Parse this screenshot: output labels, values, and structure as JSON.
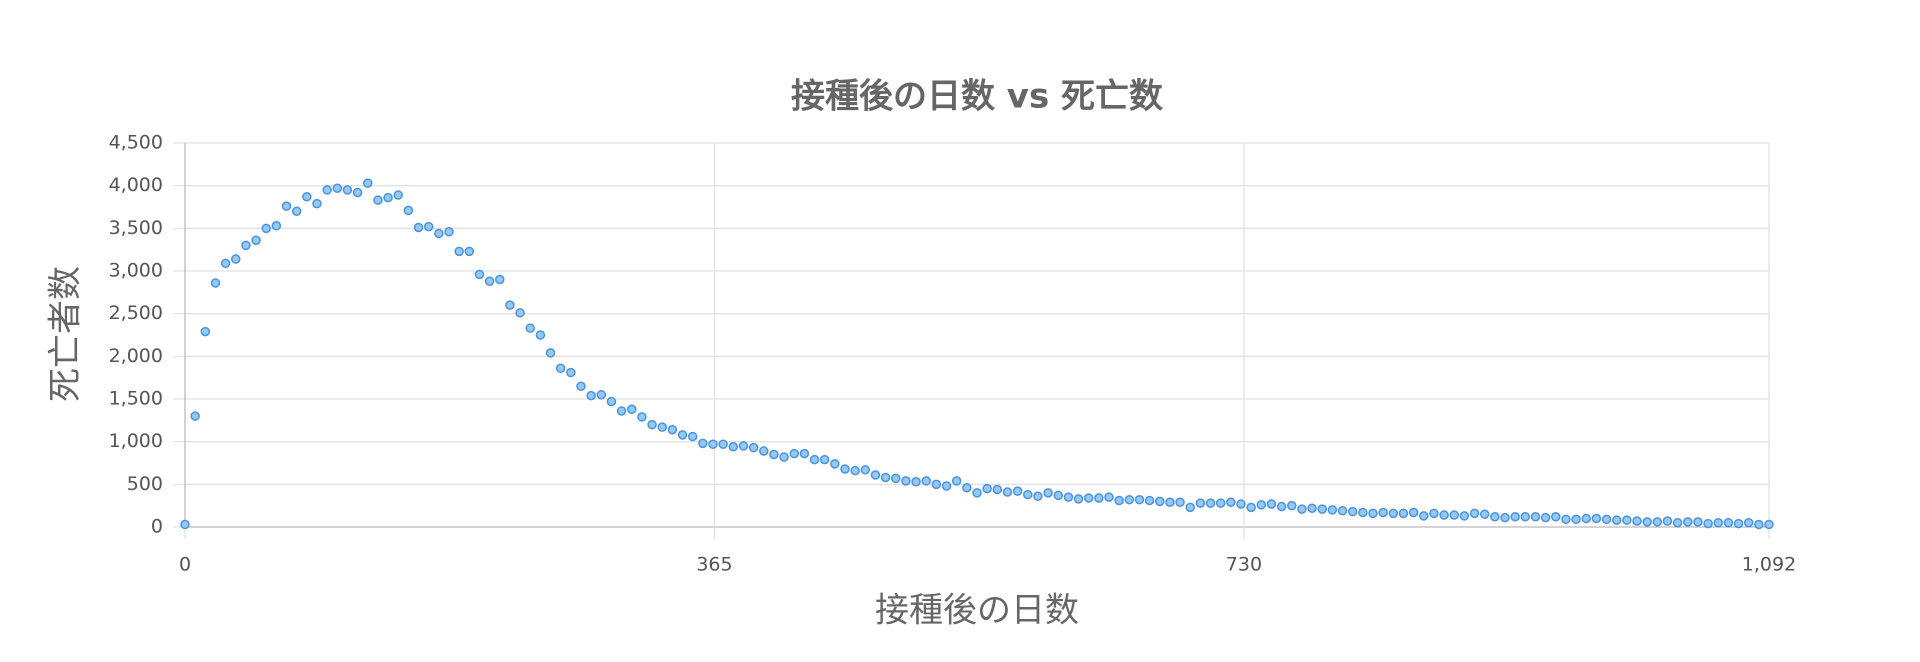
{
  "chart_data": {
    "type": "scatter",
    "title": "接種後の日数 vs 死亡数",
    "x_label": "接種後の日数",
    "y_label": "死亡者数",
    "xlim": [
      0,
      1092
    ],
    "ylim": [
      0,
      4500
    ],
    "xticks": [
      0,
      365,
      730,
      {
        "value": 1092,
        "label": "1,092"
      }
    ],
    "yticks": [
      0,
      500,
      {
        "value": 1000,
        "label": "1,000"
      },
      {
        "value": 1500,
        "label": "1,500"
      },
      {
        "value": 2000,
        "label": "2,000"
      },
      {
        "value": 2500,
        "label": "2,500"
      },
      {
        "value": 3000,
        "label": "3,000"
      },
      {
        "value": 3500,
        "label": "3,500"
      },
      {
        "value": 4000,
        "label": "4,000"
      },
      {
        "value": 4500,
        "label": "4,500"
      }
    ],
    "grid": true,
    "color": "#95c8f2",
    "edge_color": "#4a94dc",
    "x": [
      0,
      7,
      14,
      21,
      28,
      35,
      42,
      49,
      56,
      63,
      70,
      77,
      84,
      91,
      98,
      105,
      112,
      119,
      126,
      133,
      140,
      147,
      154,
      161,
      168,
      175,
      182,
      189,
      196,
      203,
      210,
      217,
      224,
      231,
      238,
      245,
      252,
      259,
      266,
      273,
      280,
      287,
      294,
      301,
      308,
      315,
      322,
      329,
      336,
      343,
      350,
      357,
      364,
      371,
      378,
      385,
      392,
      399,
      406,
      413,
      420,
      427,
      434,
      441,
      448,
      455,
      462,
      469,
      476,
      483,
      490,
      497,
      504,
      511,
      518,
      525,
      532,
      539,
      546,
      553,
      560,
      567,
      574,
      581,
      588,
      595,
      602,
      609,
      616,
      623,
      630,
      637,
      644,
      651,
      658,
      665,
      672,
      679,
      686,
      693,
      700,
      707,
      714,
      721,
      728,
      735,
      742,
      749,
      756,
      763,
      770,
      777,
      784,
      791,
      798,
      805,
      812,
      819,
      826,
      833,
      840,
      847,
      854,
      861,
      868,
      875,
      882,
      889,
      896,
      903,
      910,
      917,
      924,
      931,
      938,
      945,
      952,
      959,
      966,
      973,
      980,
      987,
      994,
      1001,
      1008,
      1015,
      1022,
      1029,
      1036,
      1043,
      1050,
      1057,
      1064,
      1071,
      1078,
      1085,
      1092
    ],
    "values": [
      30,
      1300,
      2290,
      2860,
      3090,
      3140,
      3300,
      3360,
      3500,
      3530,
      3760,
      3700,
      3870,
      3790,
      3950,
      3970,
      3950,
      3920,
      4030,
      3830,
      3860,
      3890,
      3710,
      3510,
      3520,
      3440,
      3460,
      3230,
      3230,
      2960,
      2880,
      2900,
      2600,
      2510,
      2330,
      2250,
      2040,
      1860,
      1810,
      1650,
      1540,
      1550,
      1470,
      1360,
      1380,
      1290,
      1200,
      1170,
      1140,
      1080,
      1060,
      980,
      970,
      970,
      940,
      950,
      930,
      890,
      850,
      820,
      860,
      860,
      790,
      790,
      740,
      680,
      660,
      670,
      610,
      580,
      570,
      540,
      530,
      540,
      500,
      480,
      540,
      460,
      400,
      450,
      440,
      410,
      420,
      380,
      360,
      400,
      370,
      350,
      330,
      340,
      340,
      350,
      310,
      320,
      320,
      310,
      300,
      290,
      290,
      230,
      280,
      280,
      280,
      290,
      270,
      230,
      260,
      270,
      240,
      250,
      210,
      220,
      210,
      200,
      190,
      180,
      170,
      160,
      170,
      160,
      160,
      170,
      130,
      160,
      140,
      140,
      130,
      160,
      150,
      120,
      110,
      120,
      120,
      120,
      110,
      120,
      90,
      90,
      100,
      100,
      90,
      80,
      80,
      70,
      60,
      60,
      70,
      50,
      60,
      60,
      40,
      50,
      50,
      40,
      50,
      30,
      30
    ]
  }
}
